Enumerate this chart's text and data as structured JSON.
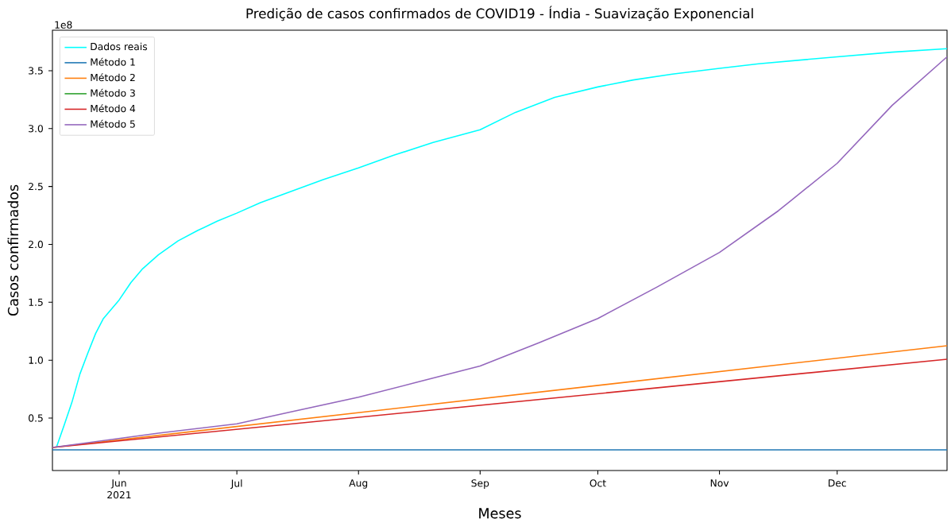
{
  "chart_data": {
    "type": "line",
    "title": "Predição de casos confirmados de COVID19 - Índia - Suavização Exponencial",
    "xlabel": "Meses",
    "ylabel": "Casos confirmados",
    "annotations": [
      "1e8"
    ],
    "xlim": [
      "2021-05-15",
      "2021-12-29"
    ],
    "xticks": [
      {
        "value": "2021-06-01",
        "label": "Jun 2021"
      },
      {
        "value": "2021-07-01",
        "label": "Jul"
      },
      {
        "value": "2021-08-01",
        "label": "Aug"
      },
      {
        "value": "2021-09-01",
        "label": "Sep"
      },
      {
        "value": "2021-10-01",
        "label": "Oct"
      },
      {
        "value": "2021-11-01",
        "label": "Nov"
      },
      {
        "value": "2021-12-01",
        "label": "Dec"
      }
    ],
    "ylim": [
      0.047,
      3.85
    ],
    "yticks": [
      0.5,
      {
        "value": 1,
        "label": "1.0"
      },
      1.5,
      {
        "value": 2,
        "label": "2.0"
      },
      2.5,
      {
        "value": 3,
        "label": "3.0"
      },
      3.5
    ],
    "grid": false,
    "legend": "top left",
    "marker": "none",
    "line_style": "solid",
    "series": [
      {
        "name": "Dados reais",
        "color": "#00ffff",
        "x": [
          "2021-05-16",
          "2021-05-18",
          "2021-05-20",
          "2021-05-22",
          "2021-05-24",
          "2021-05-26",
          "2021-05-28",
          "2021-06-01",
          "2021-06-04",
          "2021-06-07",
          "2021-06-11",
          "2021-06-16",
          "2021-06-21",
          "2021-06-26",
          "2021-07-01",
          "2021-07-07",
          "2021-07-15",
          "2021-07-23",
          "2021-08-01",
          "2021-08-10",
          "2021-08-20",
          "2021-09-01",
          "2021-09-10",
          "2021-09-20",
          "2021-10-01",
          "2021-10-10",
          "2021-10-20",
          "2021-11-01",
          "2021-11-11",
          "2021-12-01",
          "2021-12-15",
          "2021-12-29"
        ],
        "values": [
          0.246,
          0.44,
          0.64,
          0.88,
          1.06,
          1.23,
          1.36,
          1.52,
          1.67,
          1.79,
          1.91,
          2.03,
          2.12,
          2.2,
          2.27,
          2.36,
          2.46,
          2.56,
          2.66,
          2.77,
          2.88,
          2.99,
          3.14,
          3.27,
          3.36,
          3.42,
          3.47,
          3.52,
          3.56,
          3.62,
          3.66,
          3.69
        ]
      },
      {
        "name": "Método 1",
        "color": "#1f77b4",
        "x": [
          "2021-05-15",
          "2021-12-29"
        ],
        "values": [
          0.225,
          0.225
        ]
      },
      {
        "name": "Método 2",
        "color": "#ff7f0e",
        "x": [
          "2021-05-15",
          "2021-12-29"
        ],
        "values": [
          0.246,
          1.125
        ]
      },
      {
        "name": "Método 3",
        "color": "#2ca02c",
        "values": [
          null,
          null
        ]
      },
      {
        "name": "Método 4",
        "color": "#d62728",
        "x": [
          "2021-05-15",
          "2021-12-29"
        ],
        "values": [
          0.246,
          1.008
        ]
      },
      {
        "name": "Método 5",
        "color": "#9467bd",
        "x": [
          "2021-05-15",
          "2021-06-11",
          "2021-07-01",
          "2021-07-15",
          "2021-08-01",
          "2021-08-16",
          "2021-09-01",
          "2021-09-16",
          "2021-10-01",
          "2021-10-16",
          "2021-11-01",
          "2021-11-16",
          "2021-12-01",
          "2021-12-15",
          "2021-12-29"
        ],
        "values": [
          0.246,
          0.37,
          0.45,
          0.555,
          0.68,
          0.81,
          0.95,
          1.15,
          1.36,
          1.63,
          1.93,
          2.29,
          2.7,
          3.2,
          3.62
        ]
      }
    ]
  }
}
